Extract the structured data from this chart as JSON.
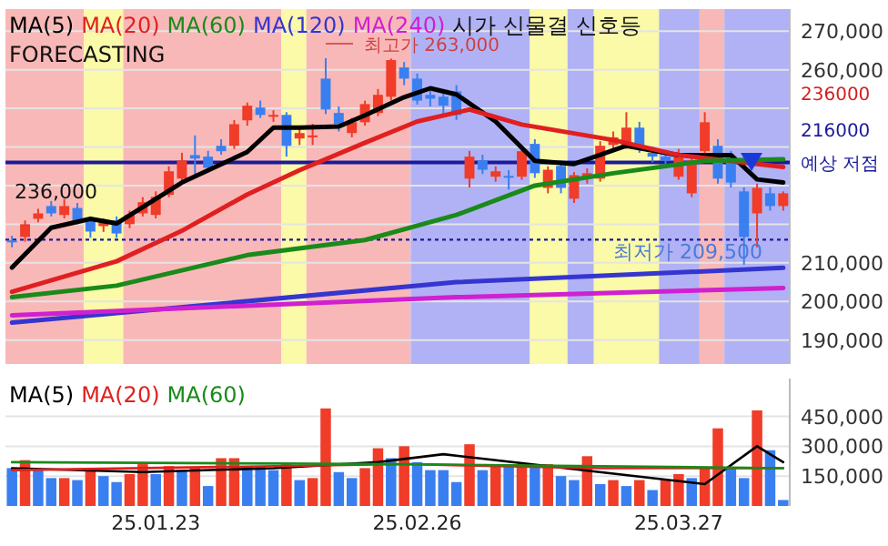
{
  "chart_data": [
    {
      "type": "candlestick",
      "title": "시가 신물결 신호등",
      "subtitle": "FORECASTING",
      "legend": "top",
      "grid": "y",
      "tick_labels": "y",
      "categories": [
        null,
        null,
        null,
        null,
        null,
        null,
        null,
        null,
        null,
        null,
        null,
        null,
        null,
        null,
        null,
        null,
        null,
        null,
        null,
        null,
        null,
        null,
        null,
        null,
        null,
        null,
        null,
        null,
        null,
        null,
        null,
        null,
        null,
        null,
        null,
        null,
        null,
        null,
        null,
        null,
        null,
        null,
        null,
        null,
        null,
        null,
        null,
        null,
        null,
        null,
        null,
        null,
        null,
        null,
        null,
        null,
        null,
        null,
        null,
        null
      ],
      "ylim": [
        183800,
        275700
      ],
      "yticks": [
        {
          "value": 190000,
          "label": "190,000"
        },
        {
          "value": 200000,
          "label": "200,000"
        },
        {
          "value": 210000,
          "label": "210,000"
        },
        {
          "value": 220000,
          "label": null
        },
        {
          "value": 230000,
          "label": null
        },
        {
          "value": 240000,
          "label": null
        },
        {
          "value": 250000,
          "label": null
        },
        {
          "value": 260000,
          "label": "260,000"
        },
        {
          "value": 270000,
          "label": "270,000"
        }
      ],
      "colors": [
        "#3a7ff0",
        "#f03c28",
        "#f03c28",
        "#3a7ff0",
        "#f03c28",
        "#3a7ff0",
        "#3a7ff0",
        "#f03c28",
        "#3a7ff0",
        "#f03c28",
        "#f03c28",
        "#f03c28",
        "#f03c28",
        "#f03c28",
        "#3a7ff0",
        "#3a7ff0",
        "#3a7ff0",
        "#f03c28",
        "#f03c28",
        "#3a7ff0",
        "#f03c28",
        "#3a7ff0",
        "#f03c28",
        "#f03c28",
        "#3a7ff0",
        "#3a7ff0",
        "#f03c28",
        "#f03c28",
        "#f03c28",
        "#f03c28",
        "#3a7ff0",
        "#3a7ff0",
        "#3a7ff0",
        "#3a7ff0",
        "#3a7ff0",
        "#f03c28",
        "#3a7ff0",
        "#f03c28",
        "#3a7ff0",
        "#f03c28",
        "#3a7ff0",
        "#f03c28",
        "#3a7ff0",
        "#f03c28",
        "#f03c28",
        "#f03c28",
        "#f03c28",
        "#f03c28",
        "#3a7ff0",
        "#3a7ff0",
        "#3a7ff0",
        "#f03c28",
        "#f03c28",
        "#f03c28",
        "#3a7ff0",
        "#3a7ff0",
        "#3a7ff0",
        "#f03c28",
        "#3a7ff0",
        "#f03c28"
      ],
      "ohlc": [
        [
          215800,
          217000,
          214000,
          215300
        ],
        [
          216700,
          221000,
          215500,
          220000
        ],
        [
          221400,
          224000,
          220500,
          222800
        ],
        [
          224700,
          226000,
          222000,
          222800
        ],
        [
          222400,
          226500,
          221500,
          224700
        ],
        [
          224200,
          225500,
          220000,
          220900
        ],
        [
          220900,
          222000,
          216500,
          218100
        ],
        [
          219500,
          221500,
          218000,
          220500
        ],
        [
          220900,
          222000,
          216500,
          217600
        ],
        [
          220000,
          223500,
          219000,
          222400
        ],
        [
          222800,
          227000,
          222000,
          225700
        ],
        [
          222400,
          228500,
          221500,
          227100
        ],
        [
          227600,
          235000,
          227000,
          233700
        ],
        [
          231800,
          238500,
          231000,
          236500
        ],
        [
          237900,
          243000,
          233000,
          237000
        ],
        [
          237500,
          239000,
          233500,
          234600
        ],
        [
          240300,
          242000,
          238000,
          238900
        ],
        [
          240300,
          247000,
          239500,
          245900
        ],
        [
          246900,
          251500,
          245500,
          250700
        ],
        [
          250200,
          252000,
          247500,
          248300
        ],
        [
          248000,
          249500,
          246500,
          248300
        ],
        [
          248300,
          249000,
          237500,
          240300
        ],
        [
          242200,
          245000,
          240500,
          243600
        ],
        [
          242500,
          246000,
          240500,
          243000
        ],
        [
          257700,
          263000,
          248500,
          249700
        ],
        [
          248800,
          250500,
          244000,
          245900
        ],
        [
          243600,
          247500,
          242500,
          246400
        ],
        [
          246400,
          252000,
          245500,
          251100
        ],
        [
          248800,
          255000,
          248000,
          253500
        ],
        [
          253000,
          262900,
          252000,
          262500
        ],
        [
          260600,
          262000,
          256000,
          257700
        ],
        [
          257700,
          259000,
          251000,
          252000
        ],
        [
          253500,
          254500,
          250500,
          252500
        ],
        [
          253000,
          254500,
          248500,
          250700
        ],
        [
          254400,
          256000,
          247000,
          248300
        ],
        [
          231800,
          239000,
          229500,
          237500
        ],
        [
          236500,
          238000,
          233000,
          234100
        ],
        [
          232300,
          235000,
          231000,
          233700
        ],
        [
          232500,
          234000,
          229000,
          232300
        ],
        [
          232300,
          240000,
          231500,
          238900
        ],
        [
          240800,
          242000,
          232000,
          233200
        ],
        [
          229400,
          235000,
          228000,
          234100
        ],
        [
          235100,
          236500,
          228000,
          229400
        ],
        [
          226600,
          233500,
          225500,
          232700
        ],
        [
          231800,
          234500,
          230500,
          233200
        ],
        [
          231800,
          241500,
          231000,
          240300
        ],
        [
          240500,
          244000,
          239500,
          242500
        ],
        [
          240300,
          249000,
          239500,
          245000
        ],
        [
          245000,
          246500,
          238500,
          240300
        ],
        [
          238500,
          240000,
          236000,
          237500
        ],
        [
          237500,
          239000,
          235000,
          236500
        ],
        [
          232300,
          239500,
          231500,
          238400
        ],
        [
          228000,
          237500,
          227000,
          236500
        ],
        [
          238900,
          249000,
          238000,
          246400
        ],
        [
          240300,
          242000,
          230500,
          231800
        ],
        [
          237500,
          239000,
          229500,
          230800
        ],
        [
          228500,
          229500,
          209500,
          216700
        ],
        [
          222800,
          230500,
          214000,
          229400
        ],
        [
          228000,
          229500,
          223500,
          224700
        ],
        [
          224700,
          228500,
          223500,
          228000
        ]
      ],
      "series": [
        {
          "name": "MA(5)",
          "type": "line",
          "color": "#000000",
          "values": [
            208800,
            null,
            null,
            219100,
            null,
            null,
            221400,
            null,
            220200,
            null,
            null,
            null,
            null,
            230800,
            null,
            null,
            null,
            null,
            238700,
            null,
            245000,
            null,
            245000,
            null,
            null,
            245300,
            null,
            248200,
            null,
            null,
            252900,
            null,
            255200,
            null,
            253600,
            null,
            null,
            246600,
            null,
            null,
            236400,
            null,
            null,
            235600,
            null,
            null,
            null,
            240300,
            null,
            null,
            null,
            237900,
            null,
            null,
            null,
            237900,
            null,
            231600,
            null,
            230800
          ]
        },
        {
          "name": "MA(20)",
          "type": "line",
          "color": "#e02020",
          "values": [
            202500,
            null,
            null,
            null,
            null,
            null,
            null,
            null,
            210400,
            null,
            null,
            null,
            null,
            218300,
            null,
            null,
            null,
            null,
            227700,
            null,
            null,
            null,
            234000,
            null,
            null,
            null,
            null,
            241100,
            null,
            null,
            null,
            246600,
            null,
            null,
            null,
            249700,
            null,
            null,
            null,
            245800,
            null,
            null,
            null,
            null,
            null,
            null,
            241800,
            null,
            null,
            null,
            null,
            237900,
            null,
            null,
            null,
            null,
            null,
            null,
            null,
            234800
          ]
        },
        {
          "name": "MA(60)",
          "type": "line",
          "color": "#1a8a1a",
          "values": [
            201100,
            null,
            null,
            null,
            null,
            null,
            null,
            null,
            204100,
            null,
            null,
            null,
            null,
            null,
            null,
            null,
            null,
            null,
            212000,
            null,
            null,
            null,
            null,
            null,
            null,
            null,
            null,
            215900,
            null,
            null,
            null,
            null,
            null,
            null,
            222400,
            null,
            null,
            null,
            null,
            null,
            230000,
            null,
            null,
            null,
            null,
            null,
            233200,
            null,
            null,
            null,
            null,
            null,
            null,
            236400,
            null,
            null,
            null,
            null,
            null,
            236800
          ]
        },
        {
          "name": "MA(120)",
          "type": "line",
          "color": "#3535d0",
          "values": [
            194500,
            null,
            null,
            null,
            null,
            null,
            null,
            null,
            null,
            null,
            null,
            null,
            null,
            null,
            null,
            null,
            null,
            null,
            null,
            null,
            null,
            null,
            null,
            null,
            null,
            null,
            null,
            null,
            null,
            null,
            null,
            null,
            null,
            null,
            205000,
            null,
            null,
            null,
            null,
            null,
            null,
            null,
            null,
            null,
            null,
            null,
            null,
            null,
            null,
            null,
            null,
            null,
            null,
            null,
            null,
            null,
            null,
            null,
            null,
            208700
          ]
        },
        {
          "name": "MA(240)",
          "type": "line",
          "color": "#d020d0",
          "values": [
            196400,
            null,
            null,
            null,
            null,
            null,
            null,
            null,
            null,
            null,
            null,
            null,
            null,
            null,
            null,
            null,
            null,
            null,
            null,
            null,
            null,
            null,
            null,
            null,
            null,
            null,
            null,
            null,
            null,
            null,
            null,
            null,
            null,
            null,
            201100,
            null,
            null,
            null,
            null,
            null,
            null,
            null,
            null,
            null,
            null,
            null,
            null,
            null,
            null,
            null,
            null,
            null,
            null,
            null,
            null,
            null,
            null,
            null,
            null,
            203500
          ]
        }
      ],
      "ref_lines": [
        {
          "axis": "y",
          "value": 236000,
          "label": "예상 저점",
          "color": "#1a1a9a",
          "line_style": "solid"
        },
        {
          "axis": "y",
          "value": 216000,
          "label": "216000",
          "color": "#1a1a9a",
          "line_style": "dotted"
        }
      ],
      "annotations": [
        "최고가 263,000",
        "최저가 209,500",
        "236,000",
        "236000"
      ]
    },
    {
      "type": "bar",
      "legend": "top left",
      "grid": "y",
      "categories": [
        null,
        null,
        null,
        null,
        null,
        null,
        null,
        null,
        null,
        null,
        null,
        "25.01.23",
        null,
        null,
        null,
        null,
        null,
        null,
        null,
        null,
        null,
        null,
        null,
        null,
        null,
        null,
        null,
        null,
        null,
        null,
        null,
        "25.02.26",
        null,
        null,
        null,
        null,
        null,
        null,
        null,
        null,
        null,
        null,
        null,
        null,
        null,
        null,
        null,
        null,
        null,
        null,
        null,
        "25.03.27",
        null,
        null,
        null,
        null,
        null,
        null,
        null,
        null
      ],
      "ylim": [
        0,
        640000
      ],
      "yticks": [
        {
          "value": 150000,
          "label": "150,000"
        },
        {
          "value": 300000,
          "label": "300,000"
        },
        {
          "value": 450000,
          "label": "450,000"
        }
      ],
      "series": [
        {
          "type": "bar",
          "values": [
            190000,
            230000,
            180000,
            140000,
            140000,
            130000,
            190000,
            150000,
            120000,
            160000,
            210000,
            160000,
            200000,
            180000,
            190000,
            100000,
            240000,
            240000,
            200000,
            200000,
            180000,
            210000,
            130000,
            140000,
            490000,
            170000,
            140000,
            190000,
            290000,
            240000,
            300000,
            220000,
            180000,
            180000,
            120000,
            310000,
            180000,
            210000,
            200000,
            210000,
            200000,
            210000,
            150000,
            130000,
            250000,
            110000,
            130000,
            100000,
            130000,
            80000,
            130000,
            160000,
            140000,
            190000,
            390000,
            190000,
            140000,
            480000,
            280000,
            30000
          ],
          "colors": [
            "#3a7ff0",
            "#f03c28",
            "#3a7ff0",
            "#3a7ff0",
            "#f03c28",
            "#3a7ff0",
            "#f03c28",
            "#3a7ff0",
            "#3a7ff0",
            "#f03c28",
            "#f03c28",
            "#3a7ff0",
            "#f03c28",
            "#3a7ff0",
            "#f03c28",
            "#3a7ff0",
            "#f03c28",
            "#f03c28",
            "#3a7ff0",
            "#3a7ff0",
            "#3a7ff0",
            "#f03c28",
            "#3a7ff0",
            "#f03c28",
            "#f03c28",
            "#3a7ff0",
            "#3a7ff0",
            "#f03c28",
            "#f03c28",
            "#3a7ff0",
            "#f03c28",
            "#3a7ff0",
            "#3a7ff0",
            "#3a7ff0",
            "#3a7ff0",
            "#f03c28",
            "#3a7ff0",
            "#f03c28",
            "#3a7ff0",
            "#f03c28",
            "#3a7ff0",
            "#f03c28",
            "#3a7ff0",
            "#3a7ff0",
            "#f03c28",
            "#3a7ff0",
            "#f03c28",
            "#3a7ff0",
            "#f03c28",
            "#3a7ff0",
            "#f03c28",
            "#f03c28",
            "#3a7ff0",
            "#f03c28",
            "#f03c28",
            "#3a7ff0",
            "#3a7ff0",
            "#f03c28",
            "#3a7ff0",
            "#3a7ff0"
          ]
        },
        {
          "name": "MA(5)",
          "type": "line",
          "color": "#000000",
          "values": [
            190000,
            null,
            null,
            null,
            null,
            null,
            null,
            null,
            null,
            null,
            170000,
            null,
            null,
            null,
            null,
            null,
            null,
            null,
            null,
            null,
            190000,
            null,
            null,
            null,
            null,
            null,
            null,
            null,
            220000,
            null,
            null,
            null,
            null,
            260000,
            null,
            null,
            null,
            null,
            null,
            null,
            null,
            null,
            null,
            null,
            null,
            null,
            null,
            null,
            null,
            null,
            null,
            null,
            null,
            110000,
            null,
            null,
            null,
            300000,
            null,
            220000
          ]
        },
        {
          "name": "MA(20)",
          "type": "line",
          "color": "#e02020",
          "values": [
            180000,
            null,
            null,
            null,
            null,
            null,
            null,
            null,
            null,
            null,
            null,
            null,
            null,
            null,
            null,
            null,
            null,
            null,
            null,
            null,
            null,
            null,
            null,
            null,
            null,
            null,
            null,
            null,
            null,
            null,
            210000,
            null,
            null,
            null,
            null,
            null,
            null,
            null,
            null,
            null,
            null,
            null,
            null,
            null,
            null,
            190000,
            null,
            null,
            null,
            null,
            null,
            null,
            null,
            null,
            null,
            null,
            null,
            null,
            null,
            190000
          ]
        },
        {
          "name": "MA(60)",
          "type": "line",
          "color": "#1a8a1a",
          "values": [
            220000,
            null,
            null,
            null,
            null,
            null,
            null,
            null,
            null,
            null,
            null,
            null,
            null,
            null,
            null,
            null,
            null,
            null,
            null,
            null,
            null,
            null,
            null,
            null,
            null,
            null,
            null,
            null,
            null,
            null,
            210000,
            null,
            null,
            null,
            null,
            null,
            null,
            null,
            null,
            null,
            null,
            null,
            null,
            null,
            null,
            null,
            null,
            null,
            null,
            null,
            null,
            null,
            null,
            null,
            null,
            null,
            null,
            null,
            null,
            190000
          ]
        }
      ]
    }
  ]
}
